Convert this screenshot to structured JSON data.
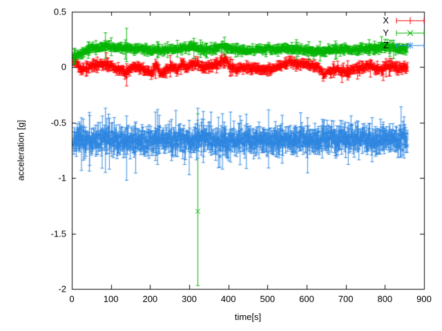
{
  "chart_data": {
    "type": "scatter",
    "style": "points-with-yerrorbars",
    "title": "",
    "xlabel": "time[s]",
    "ylabel": "acceleration [g]",
    "xlim": [
      0,
      900
    ],
    "ylim": [
      -2,
      0.5
    ],
    "x_ticks": [
      0,
      100,
      200,
      300,
      400,
      500,
      600,
      700,
      800,
      900
    ],
    "y_ticks": [
      0.5,
      0,
      -0.5,
      -1,
      -1.5,
      -2
    ],
    "grid": false,
    "legend_position": "top-right",
    "t_start": 4,
    "t_end": 858,
    "series": [
      {
        "name": "X",
        "color": "#ff0000",
        "marker": "plus",
        "seed": 11,
        "dt": 1.2,
        "noise_sigma": 0.013,
        "errorbar_base": 0.022,
        "trend": [
          [
            4,
            0.06
          ],
          [
            12,
            0.04
          ],
          [
            22,
            -0.02
          ],
          [
            35,
            -0.01
          ],
          [
            50,
            0.01
          ],
          [
            65,
            0.02
          ],
          [
            80,
            0.03
          ],
          [
            95,
            0.02
          ],
          [
            110,
            -0.01
          ],
          [
            128,
            -0.03
          ],
          [
            140,
            -0.05
          ],
          [
            152,
            -0.01
          ],
          [
            165,
            0.0
          ],
          [
            180,
            -0.01
          ],
          [
            195,
            -0.04
          ],
          [
            205,
            -0.06
          ],
          [
            215,
            0.02
          ],
          [
            228,
            -0.06
          ],
          [
            240,
            -0.03
          ],
          [
            255,
            0.0
          ],
          [
            268,
            -0.02
          ],
          [
            282,
            0.02
          ],
          [
            295,
            0.0
          ],
          [
            310,
            0.03
          ],
          [
            325,
            0.02
          ],
          [
            340,
            -0.01
          ],
          [
            355,
            0.0
          ],
          [
            370,
            0.02
          ],
          [
            383,
            0.06
          ],
          [
            393,
            0.05
          ],
          [
            405,
            0.0
          ],
          [
            420,
            -0.02
          ],
          [
            440,
            0.0
          ],
          [
            460,
            -0.01
          ],
          [
            480,
            -0.02
          ],
          [
            500,
            -0.02
          ],
          [
            520,
            0.0
          ],
          [
            540,
            0.02
          ],
          [
            555,
            0.05
          ],
          [
            570,
            0.04
          ],
          [
            585,
            0.02
          ],
          [
            600,
            0.03
          ],
          [
            615,
            0.02
          ],
          [
            630,
            -0.01
          ],
          [
            645,
            -0.05
          ],
          [
            660,
            -0.03
          ],
          [
            675,
            -0.02
          ],
          [
            690,
            -0.04
          ],
          [
            705,
            -0.04
          ],
          [
            720,
            -0.02
          ],
          [
            735,
            -0.01
          ],
          [
            750,
            0.0
          ],
          [
            762,
            0.02
          ],
          [
            775,
            -0.01
          ],
          [
            790,
            -0.03
          ],
          [
            805,
            0.01
          ],
          [
            820,
            0.0
          ],
          [
            838,
            -0.01
          ],
          [
            858,
            0.0
          ]
        ],
        "events": [
          {
            "t": 88,
            "y": 0.05,
            "low": -0.02,
            "high": 0.13
          },
          {
            "t": 140,
            "y": -0.06,
            "low": -0.17,
            "high": 0.03
          },
          {
            "t": 390,
            "y": 0.06,
            "low": 0.0,
            "high": 0.12
          },
          {
            "t": 763,
            "y": 0.0,
            "low": -0.09,
            "high": 0.07
          }
        ]
      },
      {
        "name": "Y",
        "color": "#00b400",
        "marker": "cross",
        "seed": 22,
        "dt": 1.2,
        "noise_sigma": 0.012,
        "errorbar_base": 0.02,
        "trend": [
          [
            4,
            0.1
          ],
          [
            15,
            0.11
          ],
          [
            25,
            0.13
          ],
          [
            40,
            0.16
          ],
          [
            55,
            0.17
          ],
          [
            70,
            0.17
          ],
          [
            85,
            0.19
          ],
          [
            100,
            0.18
          ],
          [
            115,
            0.17
          ],
          [
            130,
            0.17
          ],
          [
            145,
            0.18
          ],
          [
            160,
            0.17
          ],
          [
            175,
            0.17
          ],
          [
            190,
            0.16
          ],
          [
            205,
            0.15
          ],
          [
            220,
            0.16
          ],
          [
            235,
            0.15
          ],
          [
            250,
            0.16
          ],
          [
            265,
            0.16
          ],
          [
            280,
            0.17
          ],
          [
            295,
            0.17
          ],
          [
            310,
            0.18
          ],
          [
            325,
            0.17
          ],
          [
            340,
            0.16
          ],
          [
            355,
            0.16
          ],
          [
            370,
            0.17
          ],
          [
            385,
            0.19
          ],
          [
            400,
            0.17
          ],
          [
            415,
            0.16
          ],
          [
            430,
            0.16
          ],
          [
            445,
            0.15
          ],
          [
            460,
            0.15
          ],
          [
            475,
            0.16
          ],
          [
            490,
            0.16
          ],
          [
            505,
            0.17
          ],
          [
            520,
            0.16
          ],
          [
            535,
            0.16
          ],
          [
            550,
            0.17
          ],
          [
            565,
            0.17
          ],
          [
            580,
            0.16
          ],
          [
            595,
            0.15
          ],
          [
            610,
            0.15
          ],
          [
            625,
            0.14
          ],
          [
            640,
            0.15
          ],
          [
            655,
            0.15
          ],
          [
            670,
            0.16
          ],
          [
            685,
            0.16
          ],
          [
            700,
            0.16
          ],
          [
            715,
            0.16
          ],
          [
            730,
            0.16
          ],
          [
            745,
            0.16
          ],
          [
            760,
            0.17
          ],
          [
            775,
            0.17
          ],
          [
            790,
            0.18
          ],
          [
            805,
            0.19
          ],
          [
            820,
            0.17
          ],
          [
            835,
            0.16
          ],
          [
            858,
            0.16
          ]
        ],
        "events": [
          {
            "t": 8,
            "y": 0.1,
            "low": 0.03,
            "high": 0.17
          },
          {
            "t": 86,
            "y": 0.19,
            "low": 0.08,
            "high": 0.31
          },
          {
            "t": 140,
            "y": 0.18,
            "low": 0.05,
            "high": 0.35
          },
          {
            "t": 312,
            "y": 0.18,
            "low": 0.08,
            "high": 0.26
          },
          {
            "t": 322,
            "y": -1.3,
            "low": -1.97,
            "high": -0.42
          },
          {
            "t": 390,
            "y": 0.19,
            "low": 0.1,
            "high": 0.27
          },
          {
            "t": 800,
            "y": 0.2,
            "low": 0.13,
            "high": 0.25
          }
        ]
      },
      {
        "name": "Z",
        "color": "#2e86e0",
        "marker": "star",
        "seed": 33,
        "dt": 1.2,
        "noise_sigma": 0.035,
        "errorbar_base": 0.06,
        "trend": [
          [
            4,
            -0.66
          ],
          [
            50,
            -0.66
          ],
          [
            85,
            -0.64
          ],
          [
            120,
            -0.66
          ],
          [
            150,
            -0.67
          ],
          [
            200,
            -0.66
          ],
          [
            250,
            -0.65
          ],
          [
            300,
            -0.66
          ],
          [
            330,
            -0.63
          ],
          [
            360,
            -0.66
          ],
          [
            400,
            -0.67
          ],
          [
            450,
            -0.66
          ],
          [
            500,
            -0.66
          ],
          [
            550,
            -0.65
          ],
          [
            600,
            -0.66
          ],
          [
            650,
            -0.65
          ],
          [
            700,
            -0.64
          ],
          [
            750,
            -0.65
          ],
          [
            800,
            -0.65
          ],
          [
            858,
            -0.65
          ]
        ],
        "events": [
          {
            "t": 86,
            "y": -0.62,
            "low": -0.95,
            "high": -0.37
          },
          {
            "t": 96,
            "y": -0.68,
            "low": -0.92,
            "high": -0.46
          },
          {
            "t": 140,
            "y": -0.7,
            "low": -1.02,
            "high": -0.44
          },
          {
            "t": 300,
            "y": -0.68,
            "low": -0.97,
            "high": -0.48
          },
          {
            "t": 322,
            "y": -0.6,
            "low": -0.82,
            "high": -0.37
          },
          {
            "t": 336,
            "y": -0.63,
            "low": -0.86,
            "high": -0.4
          },
          {
            "t": 385,
            "y": -0.66,
            "low": -0.92,
            "high": -0.42
          },
          {
            "t": 430,
            "y": -0.66,
            "low": -0.88,
            "high": -0.44
          },
          {
            "t": 640,
            "y": -0.64,
            "low": -0.82,
            "high": -0.47
          }
        ]
      }
    ]
  }
}
